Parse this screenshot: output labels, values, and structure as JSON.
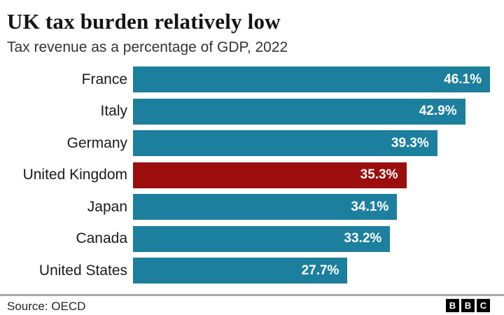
{
  "header": {
    "title": "UK tax burden relatively low",
    "subtitle": "Tax revenue as a percentage of GDP, 2022"
  },
  "chart_data": {
    "type": "bar",
    "orientation": "horizontal",
    "title": "UK tax burden relatively low",
    "subtitle": "Tax revenue as a percentage of GDP, 2022",
    "categories": [
      "France",
      "Italy",
      "Germany",
      "United Kingdom",
      "Japan",
      "Canada",
      "United States"
    ],
    "values": [
      46.1,
      42.9,
      39.3,
      35.3,
      34.1,
      33.2,
      27.7
    ],
    "value_labels": [
      "46.1%",
      "42.9%",
      "39.3%",
      "35.3%",
      "34.1%",
      "33.2%",
      "27.7%"
    ],
    "highlight_category": "United Kingdom",
    "xlim": [
      0,
      46.1
    ],
    "xlabel": "",
    "ylabel": "",
    "grid": false,
    "legend": false,
    "colors": {
      "bar": "#1d7f9e",
      "highlight_bar": "#9c0d0d",
      "value_text": "#ffffff",
      "category_text": "#1a1a1a"
    }
  },
  "footer": {
    "source_label": "Source: OECD",
    "logo_letters": [
      "B",
      "B",
      "C"
    ]
  }
}
